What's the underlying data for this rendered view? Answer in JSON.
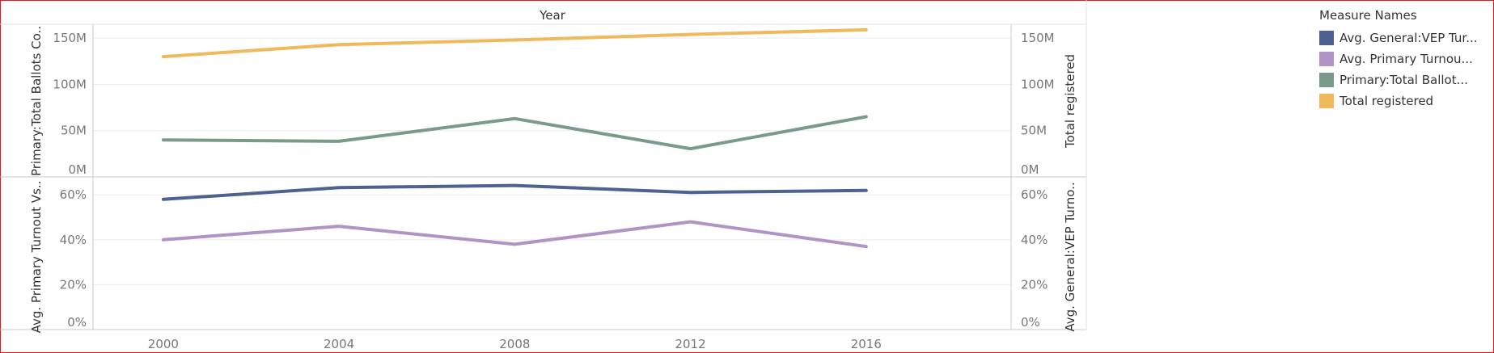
{
  "chart_data": [
    {
      "type": "line",
      "column_header": "Year",
      "ylabel": "Primary:Total Ballots Co..",
      "ylabel_right": "Total registered",
      "x": [
        2000,
        2004,
        2008,
        2012,
        2016
      ],
      "ylim": [
        0,
        165000000
      ],
      "yticks": [
        0,
        50000000,
        100000000,
        150000000
      ],
      "ytick_labels": [
        "0M",
        "50M",
        "100M",
        "150M"
      ],
      "series": [
        {
          "name": "Total registered",
          "color": "#f0b95b",
          "values": [
            130000000,
            143000000,
            148000000,
            154000000,
            159000000
          ]
        },
        {
          "name": "Primary:Total Ballot...",
          "color": "#7a9a8a",
          "values": [
            40000000,
            38500000,
            63000000,
            30500000,
            65000000
          ]
        }
      ]
    },
    {
      "type": "line",
      "ylabel": "Avg. Primary Turnout Vs..",
      "ylabel_right": "Avg. General:VEP Turno..",
      "x": [
        2000,
        2004,
        2008,
        2012,
        2016
      ],
      "xtick_labels": [
        "2000",
        "2004",
        "2008",
        "2012",
        "2016"
      ],
      "ylim": [
        0,
        0.68
      ],
      "yticks": [
        0,
        0.2,
        0.4,
        0.6
      ],
      "ytick_labels": [
        "0%",
        "20%",
        "40%",
        "60%"
      ],
      "series": [
        {
          "name": "Avg. General:VEP Tur...",
          "color": "#4e6190",
          "values": [
            0.58,
            0.632,
            0.642,
            0.611,
            0.62
          ]
        },
        {
          "name": "Avg. Primary Turnou...",
          "color": "#b193c5",
          "values": [
            0.4,
            0.46,
            0.38,
            0.48,
            0.37
          ]
        }
      ]
    }
  ],
  "legend": {
    "title": "Measure Names",
    "items": [
      {
        "label": "Avg. General:VEP Tur...",
        "color": "#4e6190"
      },
      {
        "label": "Avg. Primary Turnou...",
        "color": "#b193c5"
      },
      {
        "label": "Primary:Total Ballot...",
        "color": "#7a9a8a"
      },
      {
        "label": "Total registered",
        "color": "#f0b95b"
      }
    ]
  }
}
